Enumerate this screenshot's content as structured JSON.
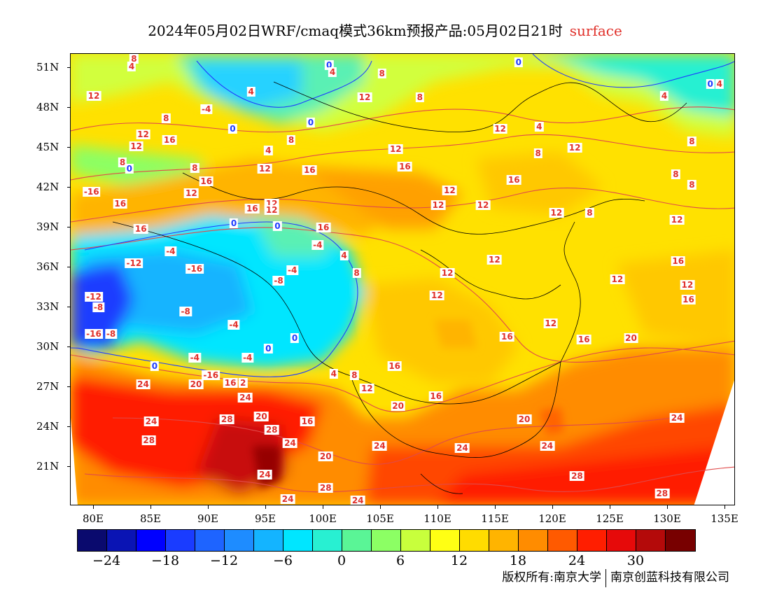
{
  "title": {
    "main": "2024年05月02日WRF/cmaq模式36km预报产品:05月02日21时",
    "field": "surface"
  },
  "axes": {
    "lat_ticks": [
      "51N",
      "48N",
      "45N",
      "42N",
      "39N",
      "36N",
      "33N",
      "30N",
      "27N",
      "24N",
      "21N"
    ],
    "lon_ticks": [
      "80E",
      "85E",
      "90E",
      "95E",
      "100E",
      "105E",
      "110E",
      "115E",
      "120E",
      "125E",
      "130E",
      "135E"
    ]
  },
  "colorbar": {
    "colors": [
      "#0a0a6e",
      "#0a14b4",
      "#0000ff",
      "#1a3cff",
      "#1e64ff",
      "#1e8cff",
      "#14b4ff",
      "#00e6ff",
      "#28f0d2",
      "#5af596",
      "#8cff64",
      "#c8ff3c",
      "#ffff14",
      "#ffdc00",
      "#ffb400",
      "#ff8c00",
      "#ff5a00",
      "#ff1e00",
      "#e60a0a",
      "#b40a0a",
      "#780000"
    ],
    "labels": [
      "−24",
      "−18",
      "−12",
      "−6",
      "0",
      "6",
      "12",
      "18",
      "24",
      "30"
    ]
  },
  "contour_labels": [
    {
      "text": "8",
      "lat": 51.7,
      "lon": 83.5
    },
    {
      "text": "4",
      "lat": 51.1,
      "lon": 83.3
    },
    {
      "text": "0",
      "lat": 51.2,
      "lon": 100.5
    },
    {
      "text": "4",
      "lat": 50.7,
      "lon": 100.8
    },
    {
      "text": "8",
      "lat": 50.6,
      "lon": 105.1
    },
    {
      "text": "0",
      "lat": 51.4,
      "lon": 117.0
    },
    {
      "text": "12",
      "lat": 48.9,
      "lon": 80.0
    },
    {
      "text": "4",
      "lat": 49.2,
      "lon": 93.7
    },
    {
      "text": "12",
      "lat": 48.8,
      "lon": 103.6
    },
    {
      "text": "8",
      "lat": 48.8,
      "lon": 108.4
    },
    {
      "text": "0",
      "lat": 49.8,
      "lon": 133.7
    },
    {
      "text": "4",
      "lat": 49.8,
      "lon": 134.5
    },
    {
      "text": "4",
      "lat": 48.9,
      "lon": 129.7
    },
    {
      "text": "-4",
      "lat": 47.9,
      "lon": 89.8
    },
    {
      "text": "8",
      "lat": 47.2,
      "lon": 86.3
    },
    {
      "text": "0",
      "lat": 46.9,
      "lon": 98.9
    },
    {
      "text": "0",
      "lat": 46.4,
      "lon": 92.1
    },
    {
      "text": "12",
      "lat": 46.4,
      "lon": 115.4
    },
    {
      "text": "4",
      "lat": 46.6,
      "lon": 118.8
    },
    {
      "text": "12",
      "lat": 46.0,
      "lon": 84.3
    },
    {
      "text": "8",
      "lat": 45.6,
      "lon": 97.2
    },
    {
      "text": "4",
      "lat": 44.8,
      "lon": 95.2
    },
    {
      "text": "12",
      "lat": 45.1,
      "lon": 83.7
    },
    {
      "text": "16",
      "lat": 45.6,
      "lon": 86.6
    },
    {
      "text": "12",
      "lat": 44.9,
      "lon": 106.3
    },
    {
      "text": "8",
      "lat": 44.6,
      "lon": 118.7
    },
    {
      "text": "12",
      "lat": 45.0,
      "lon": 121.9
    },
    {
      "text": "8",
      "lat": 45.5,
      "lon": 132.1
    },
    {
      "text": "8",
      "lat": 43.9,
      "lon": 82.5
    },
    {
      "text": "0",
      "lat": 43.4,
      "lon": 83.1
    },
    {
      "text": "8",
      "lat": 43.5,
      "lon": 88.8
    },
    {
      "text": "12",
      "lat": 43.4,
      "lon": 94.9
    },
    {
      "text": "16",
      "lat": 43.3,
      "lon": 98.8
    },
    {
      "text": "16",
      "lat": 43.6,
      "lon": 107.1
    },
    {
      "text": "8",
      "lat": 43.0,
      "lon": 130.7
    },
    {
      "text": "16",
      "lat": 42.5,
      "lon": 89.8
    },
    {
      "text": "16",
      "lat": 42.6,
      "lon": 116.6
    },
    {
      "text": "8",
      "lat": 42.2,
      "lon": 132.1
    },
    {
      "text": "12",
      "lat": 41.8,
      "lon": 111.0
    },
    {
      "text": "-16",
      "lat": 41.7,
      "lon": 79.8
    },
    {
      "text": "12",
      "lat": 41.6,
      "lon": 88.5
    },
    {
      "text": "16",
      "lat": 40.8,
      "lon": 82.3
    },
    {
      "text": "12",
      "lat": 40.8,
      "lon": 95.5
    },
    {
      "text": "12",
      "lat": 40.3,
      "lon": 95.5
    },
    {
      "text": "16",
      "lat": 40.4,
      "lon": 93.8
    },
    {
      "text": "12",
      "lat": 40.7,
      "lon": 110.0
    },
    {
      "text": "12",
      "lat": 40.7,
      "lon": 113.9
    },
    {
      "text": "12",
      "lat": 40.1,
      "lon": 120.3
    },
    {
      "text": "8",
      "lat": 40.1,
      "lon": 123.2
    },
    {
      "text": "0",
      "lat": 39.3,
      "lon": 92.2
    },
    {
      "text": "0",
      "lat": 39.1,
      "lon": 96.0
    },
    {
      "text": "16",
      "lat": 39.0,
      "lon": 100.0
    },
    {
      "text": "16",
      "lat": 38.9,
      "lon": 84.1
    },
    {
      "text": "12",
      "lat": 39.6,
      "lon": 130.8
    },
    {
      "text": "-4",
      "lat": 37.7,
      "lon": 99.5
    },
    {
      "text": "-4",
      "lat": 37.2,
      "lon": 86.7
    },
    {
      "text": "4",
      "lat": 36.9,
      "lon": 101.8
    },
    {
      "text": "12",
      "lat": 36.6,
      "lon": 114.9
    },
    {
      "text": "16",
      "lat": 36.5,
      "lon": 130.9
    },
    {
      "text": "-12",
      "lat": 36.3,
      "lon": 83.5
    },
    {
      "text": "-16",
      "lat": 35.9,
      "lon": 88.8
    },
    {
      "text": "-4",
      "lat": 35.8,
      "lon": 97.3
    },
    {
      "text": "8",
      "lat": 35.6,
      "lon": 102.9
    },
    {
      "text": "12",
      "lat": 35.6,
      "lon": 110.8
    },
    {
      "text": "-8",
      "lat": 35.0,
      "lon": 96.1
    },
    {
      "text": "12",
      "lat": 35.1,
      "lon": 125.6
    },
    {
      "text": "12",
      "lat": 34.7,
      "lon": 131.7
    },
    {
      "text": "-12",
      "lat": 33.8,
      "lon": 80.0
    },
    {
      "text": "12",
      "lat": 33.9,
      "lon": 109.9
    },
    {
      "text": "16",
      "lat": 33.6,
      "lon": 131.8
    },
    {
      "text": "-8",
      "lat": 33.0,
      "lon": 80.4
    },
    {
      "text": "-8",
      "lat": 32.7,
      "lon": 88.0
    },
    {
      "text": "-4",
      "lat": 31.7,
      "lon": 92.2
    },
    {
      "text": "12",
      "lat": 31.8,
      "lon": 119.8
    },
    {
      "text": "-16",
      "lat": 31.0,
      "lon": 80.0
    },
    {
      "text": "-8",
      "lat": 31.0,
      "lon": 81.5
    },
    {
      "text": "0",
      "lat": 30.7,
      "lon": 97.5
    },
    {
      "text": "16",
      "lat": 30.8,
      "lon": 116.0
    },
    {
      "text": "16",
      "lat": 30.6,
      "lon": 122.7
    },
    {
      "text": "20",
      "lat": 30.7,
      "lon": 126.8
    },
    {
      "text": "0",
      "lat": 29.9,
      "lon": 95.2
    },
    {
      "text": "-4",
      "lat": 29.2,
      "lon": 88.8
    },
    {
      "text": "-4",
      "lat": 29.2,
      "lon": 93.4
    },
    {
      "text": "0",
      "lat": 28.6,
      "lon": 85.3
    },
    {
      "text": "16",
      "lat": 28.6,
      "lon": 106.2
    },
    {
      "text": "4",
      "lat": 28.0,
      "lon": 100.9
    },
    {
      "text": "8",
      "lat": 27.9,
      "lon": 102.7
    },
    {
      "text": "-16",
      "lat": 27.9,
      "lon": 90.2
    },
    {
      "text": "16",
      "lat": 27.3,
      "lon": 91.9
    },
    {
      "text": "2",
      "lat": 27.3,
      "lon": 93.0
    },
    {
      "text": "24",
      "lat": 27.2,
      "lon": 84.3
    },
    {
      "text": "20",
      "lat": 27.2,
      "lon": 88.9
    },
    {
      "text": "12",
      "lat": 26.9,
      "lon": 103.8
    },
    {
      "text": "24",
      "lat": 26.2,
      "lon": 93.2
    },
    {
      "text": "16",
      "lat": 26.3,
      "lon": 109.8
    },
    {
      "text": "20",
      "lat": 25.6,
      "lon": 106.5
    },
    {
      "text": "20",
      "lat": 24.8,
      "lon": 94.6
    },
    {
      "text": "28",
      "lat": 24.6,
      "lon": 91.6
    },
    {
      "text": "24",
      "lat": 24.4,
      "lon": 85.0
    },
    {
      "text": "16",
      "lat": 24.4,
      "lon": 98.6
    },
    {
      "text": "20",
      "lat": 24.6,
      "lon": 117.5
    },
    {
      "text": "24",
      "lat": 24.7,
      "lon": 130.8
    },
    {
      "text": "28",
      "lat": 23.8,
      "lon": 95.5
    },
    {
      "text": "28",
      "lat": 23.0,
      "lon": 84.8
    },
    {
      "text": "24",
      "lat": 22.8,
      "lon": 97.1
    },
    {
      "text": "24",
      "lat": 22.6,
      "lon": 104.9
    },
    {
      "text": "24",
      "lat": 22.4,
      "lon": 112.1
    },
    {
      "text": "24",
      "lat": 22.6,
      "lon": 119.5
    },
    {
      "text": "20",
      "lat": 21.8,
      "lon": 100.2
    },
    {
      "text": "24",
      "lat": 20.4,
      "lon": 94.9
    },
    {
      "text": "28",
      "lat": 20.3,
      "lon": 122.1
    },
    {
      "text": "28",
      "lat": 19.4,
      "lon": 100.2
    },
    {
      "text": "24",
      "lat": 18.6,
      "lon": 96.9
    },
    {
      "text": "24",
      "lat": 18.5,
      "lon": 103.0
    },
    {
      "text": "28",
      "lat": 19.0,
      "lon": 129.5
    }
  ],
  "copyright": {
    "left": "版权所有:南京大学",
    "right": "南京创蓝科技有限公司"
  }
}
